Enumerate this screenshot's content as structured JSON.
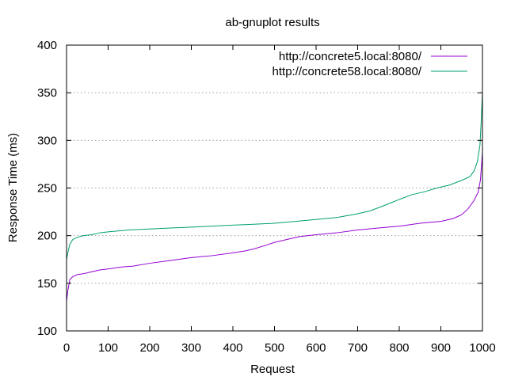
{
  "chart_data": {
    "type": "line",
    "title": "ab-gnuplot results",
    "xlabel": "Request",
    "ylabel": "Response Time (ms)",
    "xlim": [
      0,
      1000
    ],
    "ylim": [
      100,
      400
    ],
    "x_ticks": [
      "0",
      "100",
      "200",
      "300",
      "400",
      "500",
      "600",
      "700",
      "800",
      "900",
      "1000"
    ],
    "y_ticks": [
      "100",
      "150",
      "200",
      "250",
      "300",
      "350",
      "400"
    ],
    "y_grid": true,
    "legend_position": "top-right",
    "series": [
      {
        "name": "http://concrete5.local:8080/",
        "color": "#9400d3",
        "points": [
          [
            0,
            131
          ],
          [
            3,
            142
          ],
          [
            8,
            154
          ],
          [
            15,
            157
          ],
          [
            25,
            159
          ],
          [
            40,
            160
          ],
          [
            60,
            162
          ],
          [
            80,
            164
          ],
          [
            100,
            165
          ],
          [
            130,
            167
          ],
          [
            160,
            168
          ],
          [
            200,
            171
          ],
          [
            250,
            174
          ],
          [
            300,
            177
          ],
          [
            350,
            179
          ],
          [
            400,
            182
          ],
          [
            430,
            184
          ],
          [
            450,
            186
          ],
          [
            480,
            190
          ],
          [
            500,
            193
          ],
          [
            530,
            196
          ],
          [
            560,
            199
          ],
          [
            600,
            201
          ],
          [
            650,
            203
          ],
          [
            700,
            206
          ],
          [
            750,
            208
          ],
          [
            800,
            210
          ],
          [
            850,
            213
          ],
          [
            900,
            215
          ],
          [
            930,
            218
          ],
          [
            950,
            222
          ],
          [
            965,
            228
          ],
          [
            980,
            237
          ],
          [
            990,
            246
          ],
          [
            995,
            258
          ],
          [
            998,
            275
          ],
          [
            1000,
            288
          ]
        ]
      },
      {
        "name": "http://concrete58.local:8080/",
        "color": "#009e73",
        "points": [
          [
            0,
            175
          ],
          [
            3,
            182
          ],
          [
            8,
            191
          ],
          [
            15,
            196
          ],
          [
            25,
            198
          ],
          [
            40,
            200
          ],
          [
            60,
            201
          ],
          [
            80,
            203
          ],
          [
            100,
            204
          ],
          [
            150,
            206
          ],
          [
            200,
            207
          ],
          [
            250,
            208
          ],
          [
            300,
            209
          ],
          [
            350,
            210
          ],
          [
            400,
            211
          ],
          [
            450,
            212
          ],
          [
            500,
            213
          ],
          [
            550,
            215
          ],
          [
            600,
            217
          ],
          [
            650,
            219
          ],
          [
            700,
            223
          ],
          [
            730,
            226
          ],
          [
            760,
            231
          ],
          [
            800,
            238
          ],
          [
            830,
            243
          ],
          [
            860,
            246
          ],
          [
            890,
            250
          ],
          [
            920,
            253
          ],
          [
            950,
            258
          ],
          [
            970,
            262
          ],
          [
            980,
            268
          ],
          [
            988,
            278
          ],
          [
            994,
            295
          ],
          [
            997,
            320
          ],
          [
            1000,
            350
          ]
        ]
      }
    ]
  }
}
